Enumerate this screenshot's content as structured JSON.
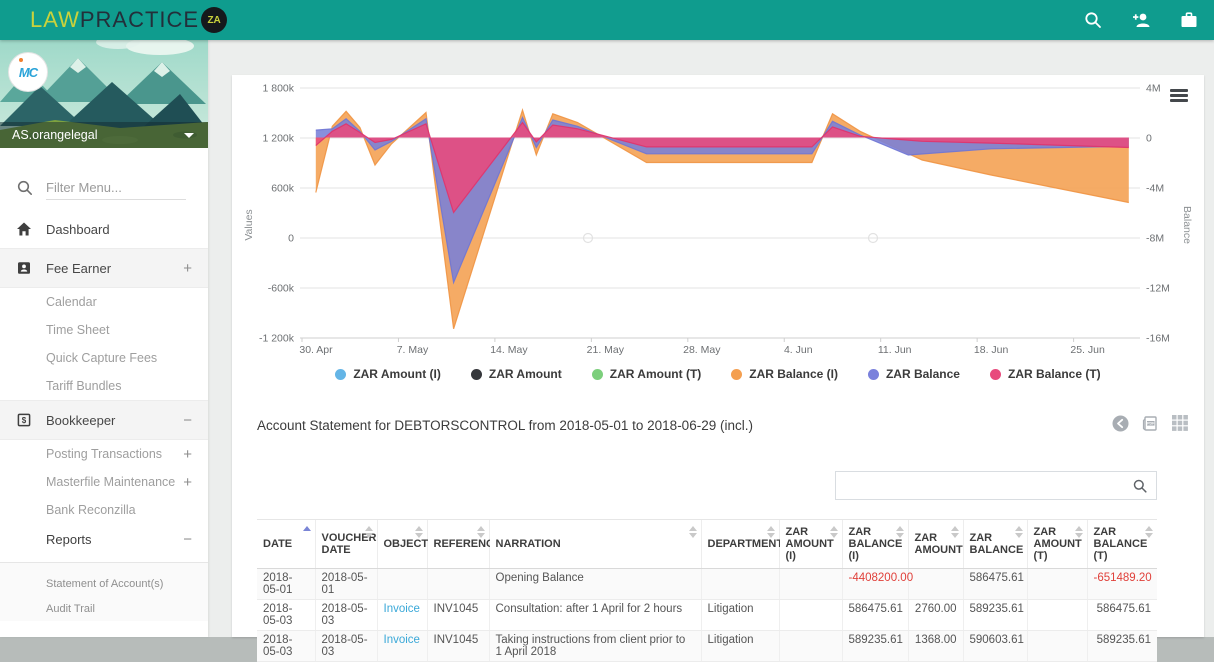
{
  "app": {
    "logo_law": "LAW",
    "logo_practice": "PRACTICE",
    "logo_za": "ZA",
    "header_color": "#0f9c8e"
  },
  "sidebar": {
    "profile_name": "AS.orangelegal",
    "avatar_text": "MC",
    "filter_placeholder": "Filter Menu...",
    "items": [
      {
        "label": "Dashboard",
        "icon": "home",
        "type": "main"
      },
      {
        "label": "Fee Earner",
        "icon": "badge",
        "type": "main",
        "expander": "+",
        "highlighted": true
      },
      {
        "label": "Calendar",
        "type": "sub"
      },
      {
        "label": "Time Sheet",
        "type": "sub"
      },
      {
        "label": "Quick Capture Fees",
        "type": "sub"
      },
      {
        "label": "Tariff Bundles",
        "type": "sub"
      },
      {
        "label": "Bookkeeper",
        "icon": "dollar",
        "type": "main",
        "expander": "−",
        "highlighted": true
      },
      {
        "label": "Posting Transactions",
        "type": "sub",
        "expander": "+"
      },
      {
        "label": "Masterfile Maintenance",
        "type": "sub",
        "expander": "+"
      },
      {
        "label": "Bank Reconzilla",
        "type": "sub"
      },
      {
        "label": "Reports",
        "type": "subactive",
        "expander": "−"
      },
      {
        "label": "Statement of Account(s)",
        "type": "small"
      },
      {
        "label": "Audit Trail",
        "type": "small"
      }
    ]
  },
  "chart": {
    "left_axis_title": "Values",
    "right_axis_title": "Balance",
    "left_ticks": [
      "1 800k",
      "1 200k",
      "600k",
      "0",
      "-600k",
      "-1 200k"
    ],
    "right_ticks": [
      "4M",
      "0",
      "-4M",
      "-8M",
      "-12M",
      "-16M"
    ],
    "x_ticks": [
      "30. Apr",
      "7. May",
      "14. May",
      "21. May",
      "28. May",
      "4. Jun",
      "11. Jun",
      "18. Jun",
      "25. Jun"
    ],
    "legend": [
      {
        "label": "ZAR Amount (I)",
        "color": "#64b5e6"
      },
      {
        "label": "ZAR Amount",
        "color": "#35373b"
      },
      {
        "label": "ZAR Amount (T)",
        "color": "#7ccf7c"
      },
      {
        "label": "ZAR Balance (I)",
        "color": "#f49f50"
      },
      {
        "label": "ZAR Balance",
        "color": "#7a81dc"
      },
      {
        "label": "ZAR Balance (T)",
        "color": "#e84a7c"
      }
    ]
  },
  "chart_data": {
    "type": "area",
    "title": "",
    "x_range_dates": [
      "2018-04-30",
      "2018-06-29"
    ],
    "x_unit": "days offset from 2018-04-30",
    "left_axis": {
      "label": "Values",
      "ticks_k": [
        1800,
        1200,
        600,
        0,
        -600,
        -1200
      ]
    },
    "right_axis": {
      "label": "Balance",
      "ticks_M": [
        4,
        0,
        -4,
        -8,
        -12,
        -16
      ]
    },
    "legend_position": "bottom",
    "grid": true,
    "series": [
      {
        "name": "ZAR Amount (I)",
        "axis": "left",
        "color": "#64b5e6",
        "note": "≈0 at chart scale",
        "points_day_value": [
          [
            0,
            0
          ],
          [
            60,
            0
          ]
        ]
      },
      {
        "name": "ZAR Amount",
        "axis": "left",
        "color": "#35373b",
        "note": "≈0 at chart scale (transaction amounts of a few thousand ZAR)",
        "points_day_value": [
          [
            0,
            0
          ],
          [
            60,
            0
          ]
        ]
      },
      {
        "name": "ZAR Amount (T)",
        "axis": "left",
        "color": "#7ccf7c",
        "note": "≈0 at chart scale",
        "points_day_value": [
          [
            0,
            0
          ],
          [
            60,
            0
          ]
        ]
      },
      {
        "name": "ZAR Balance (I)",
        "axis": "right",
        "units": "millions ZAR",
        "color": "#ef9443",
        "fill": "rgba(244,159,80,0.88)",
        "points_day_value": [
          [
            1,
            -4.4
          ],
          [
            2.2,
            0.9
          ],
          [
            3.2,
            2.1
          ],
          [
            4.2,
            0.8
          ],
          [
            5.3,
            -2.2
          ],
          [
            6.5,
            -0.5
          ],
          [
            9,
            2.0
          ],
          [
            11,
            -15.3
          ],
          [
            16,
            2.2
          ],
          [
            17,
            -1.4
          ],
          [
            18.2,
            1.9
          ],
          [
            20,
            1.2
          ],
          [
            25,
            -2.0
          ],
          [
            37,
            -2.0
          ],
          [
            38.5,
            1.9
          ],
          [
            40.5,
            0.5
          ],
          [
            45,
            -1.8
          ],
          [
            50,
            -3.0
          ],
          [
            60,
            -5.2
          ]
        ]
      },
      {
        "name": "ZAR Balance",
        "axis": "right",
        "units": "millions ZAR",
        "color": "#6f76d4",
        "fill": "rgba(121,128,216,0.88)",
        "points_day_value": [
          [
            1,
            0.59
          ],
          [
            2.2,
            0.7
          ],
          [
            3.2,
            1.5
          ],
          [
            4.2,
            0.5
          ],
          [
            5.3,
            -1.0
          ],
          [
            6.5,
            -0.3
          ],
          [
            9,
            1.5
          ],
          [
            11,
            -11.6
          ],
          [
            16,
            1.6
          ],
          [
            17,
            -0.8
          ],
          [
            18.2,
            1.4
          ],
          [
            20,
            0.9
          ],
          [
            25,
            -1.3
          ],
          [
            37,
            -1.3
          ],
          [
            38.5,
            1.3
          ],
          [
            40.5,
            0.2
          ],
          [
            44,
            -1.4
          ],
          [
            50,
            -0.9
          ],
          [
            60,
            -0.7
          ]
        ]
      },
      {
        "name": "ZAR Balance (T)",
        "axis": "right",
        "units": "millions ZAR",
        "color": "#e0336b",
        "fill": "rgba(232,74,124,0.88)",
        "points_day_value": [
          [
            1,
            -0.65
          ],
          [
            2.2,
            0.5
          ],
          [
            3.2,
            1.1
          ],
          [
            4.2,
            0.4
          ],
          [
            5.3,
            -0.4
          ],
          [
            6.5,
            -0.15
          ],
          [
            9,
            1.1
          ],
          [
            11,
            -6.0
          ],
          [
            16,
            1.2
          ],
          [
            17,
            -0.35
          ],
          [
            18.2,
            1.0
          ],
          [
            20,
            0.7
          ],
          [
            25,
            -0.75
          ],
          [
            37,
            -0.75
          ],
          [
            38.5,
            0.85
          ],
          [
            40.5,
            0.1
          ],
          [
            45,
            -0.3
          ],
          [
            50,
            -0.45
          ],
          [
            60,
            -0.8
          ]
        ]
      }
    ]
  },
  "statement": {
    "title": "Account Statement for DEBTORSCONTROL from 2018-05-01 to 2018-06-29 (incl.)",
    "search_value": "",
    "colors": {
      "negative": "#e0403a",
      "link": "#3aa8d8"
    },
    "columns": [
      {
        "key": "date",
        "label": "DATE",
        "sort": "asc"
      },
      {
        "key": "voucher_date",
        "label": "VOUCHER DATE",
        "sort": "both"
      },
      {
        "key": "object",
        "label": "OBJECT",
        "sort": "both"
      },
      {
        "key": "reference",
        "label": "REFERENCE",
        "sort": "both"
      },
      {
        "key": "narration",
        "label": "NARRATION",
        "sort": "both"
      },
      {
        "key": "department",
        "label": "DEPARTMENT",
        "sort": "both"
      },
      {
        "key": "amount_i",
        "label": "ZAR AMOUNT (I)",
        "sort": "both",
        "numeric": true
      },
      {
        "key": "balance_i",
        "label": "ZAR BALANCE (I)",
        "sort": "both",
        "numeric": true
      },
      {
        "key": "amount",
        "label": "ZAR AMOUNT",
        "sort": "both",
        "numeric": true
      },
      {
        "key": "balance",
        "label": "ZAR BALANCE",
        "sort": "both",
        "numeric": true
      },
      {
        "key": "amount_t",
        "label": "ZAR AMOUNT (T)",
        "sort": "both",
        "numeric": true
      },
      {
        "key": "balance_t",
        "label": "ZAR BALANCE (T)",
        "sort": "both",
        "numeric": true
      }
    ],
    "rows": [
      {
        "date": "2018-05-01",
        "voucher_date": "2018-05-01",
        "object": "",
        "reference": "",
        "narration": "Opening Balance",
        "department": "",
        "amount_i": "",
        "balance_i": "-4408200.00",
        "amount": "",
        "balance": "586475.61",
        "amount_t": "",
        "balance_t": "-651489.20"
      },
      {
        "date": "2018-05-03",
        "voucher_date": "2018-05-03",
        "object": "Invoice",
        "reference": "INV1045",
        "narration": "Consultation: after 1 April for 2 hours",
        "department": "Litigation",
        "amount_i": "",
        "balance_i": "586475.61",
        "amount": "2760.00",
        "balance": "589235.61",
        "amount_t": "",
        "balance_t": "586475.61"
      },
      {
        "date": "2018-05-03",
        "voucher_date": "2018-05-03",
        "object": "Invoice",
        "reference": "INV1045",
        "narration": "Taking instructions from client prior to 1 April 2018",
        "department": "Litigation",
        "amount_i": "",
        "balance_i": "589235.61",
        "amount": "1368.00",
        "balance": "590603.61",
        "amount_t": "",
        "balance_t": "589235.61"
      }
    ]
  }
}
